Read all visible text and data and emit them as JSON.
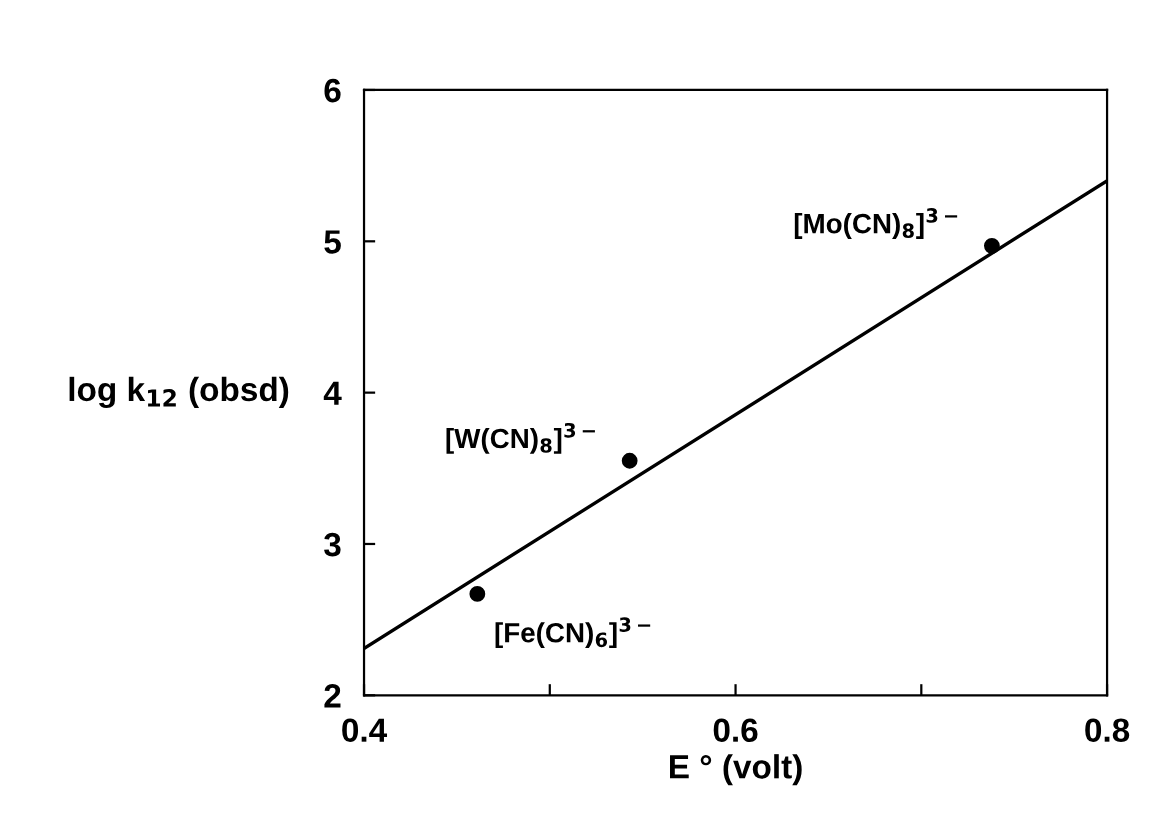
{
  "chart_data": {
    "type": "scatter",
    "xlabel": "E ° (volt)",
    "ylabel": "log k$_{12}$ (obsd)",
    "xlim": [
      0.4,
      0.8
    ],
    "ylim": [
      2,
      6
    ],
    "xticks": [
      0.4,
      {
        "value": 0.5,
        "label": null
      },
      0.6,
      {
        "value": 0.7,
        "label": null
      },
      0.8
    ],
    "yticks": [
      2,
      3,
      4,
      5,
      6
    ],
    "grid": false,
    "marker": "circle",
    "series": [
      {
        "color": "#000000",
        "x": [
          0.461,
          0.543,
          0.738
        ],
        "values": [
          2.67,
          3.55,
          4.97
        ]
      },
      {
        "type": "line",
        "color": "#000000",
        "x": [
          0.4,
          0.8
        ],
        "values": [
          2.31,
          5.4
        ],
        "marker": "none",
        "line_style": "solid"
      }
    ],
    "annotations": [
      {
        "text": "[Fe(CN)$_{6}$]$^{3−}$",
        "x": 0.461,
        "y": 2.67
      },
      {
        "text": "[W(CN)$_{8}$]$^{3−}$",
        "x": 0.543,
        "y": 3.55
      },
      {
        "text": "[Mo(CN)$_{8}$]$^{3−}$",
        "x": 0.738,
        "y": 4.97
      }
    ]
  }
}
